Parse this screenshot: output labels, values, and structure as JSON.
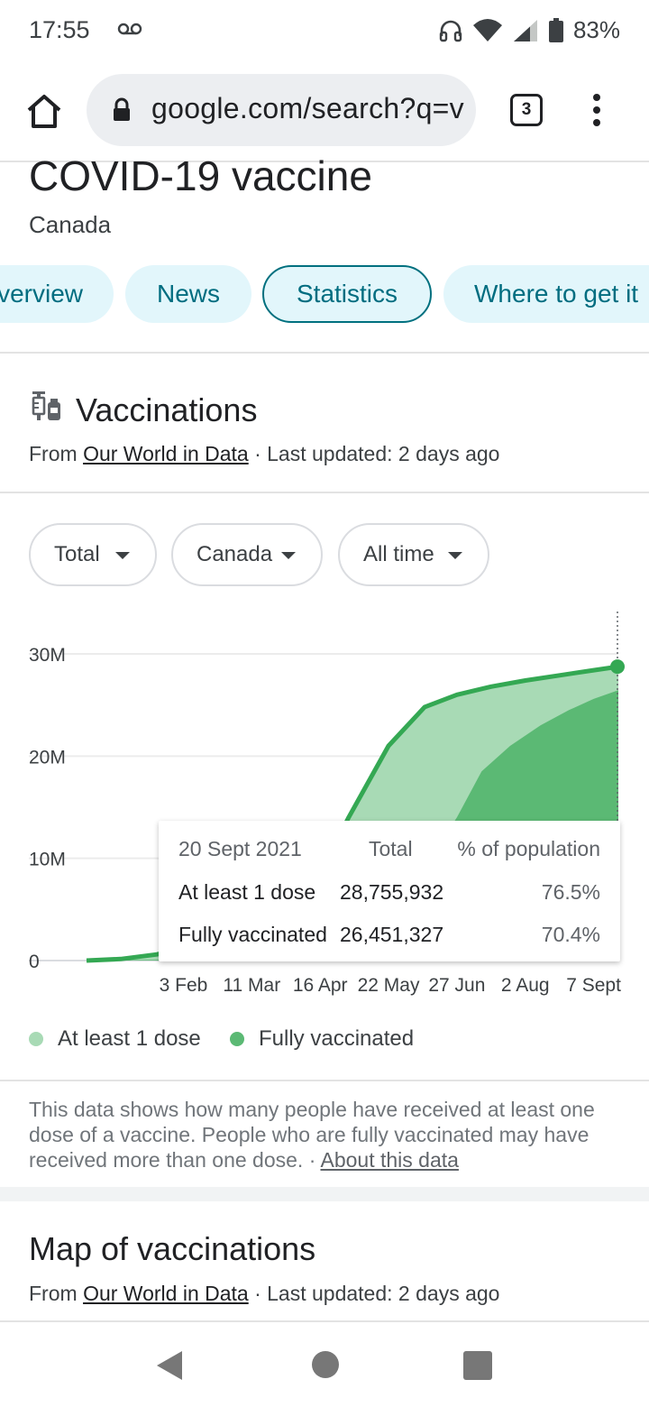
{
  "status_bar": {
    "time": "17:55",
    "battery_percent": "83%",
    "icons": [
      "voicemail-icon",
      "headphones-icon",
      "wifi-icon",
      "signal-icon",
      "battery-icon"
    ]
  },
  "browser": {
    "url": "google.com/search?q=v",
    "tab_count": "3"
  },
  "page": {
    "title": "COVID-19 vaccine",
    "subtitle": "Canada",
    "chips": [
      {
        "label": "Overview",
        "visible": "verview"
      },
      {
        "label": "News",
        "visible": "News"
      },
      {
        "label": "Statistics",
        "visible": "Statistics",
        "selected": true
      },
      {
        "label": "Where to get it",
        "visible": "Where to get it"
      }
    ]
  },
  "vaccinations": {
    "title": "Vaccinations",
    "source_prefix": "From ",
    "source_link": "Our World in Data",
    "source_suffix": " · Last updated: 2 days ago",
    "filters": [
      "Total",
      "Canada",
      "All time"
    ]
  },
  "chart_data": {
    "type": "area",
    "y_ticks": [
      "30M",
      "20M",
      "10M",
      "0"
    ],
    "x_ticks": [
      "3 Feb",
      "11 Mar",
      "16 Apr",
      "22 May",
      "27 Jun",
      "2 Aug",
      "7 Sept"
    ],
    "ylim": [
      0,
      30000000
    ],
    "colors": {
      "at_least_one": "#a8dab5",
      "fully": "#5bb974",
      "line": "#34a853"
    },
    "series": [
      {
        "name": "At least 1 dose",
        "points": [
          [
            "2020-12-14",
            0
          ],
          [
            "2021-01-01",
            150000
          ],
          [
            "2021-01-20",
            600000
          ],
          [
            "2021-02-03",
            1200000
          ],
          [
            "2021-03-11",
            3000000
          ],
          [
            "2021-04-16",
            8500000
          ],
          [
            "2021-05-01",
            14000000
          ],
          [
            "2021-05-22",
            21000000
          ],
          [
            "2021-06-10",
            24800000
          ],
          [
            "2021-06-27",
            26000000
          ],
          [
            "2021-07-15",
            26800000
          ],
          [
            "2021-08-02",
            27400000
          ],
          [
            "2021-08-20",
            27900000
          ],
          [
            "2021-09-07",
            28400000
          ],
          [
            "2021-09-20",
            28755932
          ]
        ]
      },
      {
        "name": "Fully vaccinated",
        "points": [
          [
            "2020-12-14",
            0
          ],
          [
            "2021-02-03",
            100000
          ],
          [
            "2021-04-16",
            900000
          ],
          [
            "2021-06-01",
            4000000
          ],
          [
            "2021-06-10",
            7500000
          ],
          [
            "2021-06-20",
            12000000
          ],
          [
            "2021-06-27",
            14000000
          ],
          [
            "2021-07-10",
            18500000
          ],
          [
            "2021-07-25",
            21000000
          ],
          [
            "2021-08-10",
            23000000
          ],
          [
            "2021-08-25",
            24500000
          ],
          [
            "2021-09-07",
            25600000
          ],
          [
            "2021-09-20",
            26451327
          ]
        ]
      }
    ]
  },
  "tooltip": {
    "date": "20 Sept 2021",
    "col_total": "Total",
    "col_pct": "% of population",
    "rows": [
      {
        "label": "At least 1 dose",
        "total": "28,755,932",
        "pct": "76.5%"
      },
      {
        "label": "Fully vaccinated",
        "total": "26,451,327",
        "pct": "70.4%"
      }
    ]
  },
  "legend": [
    "At least 1 dose",
    "Fully vaccinated"
  ],
  "note": {
    "text": "This data shows how many people have received at least one dose of a vaccine. People who are fully vaccinated may have received more than one dose.",
    "sep": " · ",
    "link": "About this data"
  },
  "map": {
    "title": "Map of vaccinations",
    "source_prefix": "From ",
    "source_link": "Our World in Data",
    "source_suffix": " · Last updated: 2 days ago"
  }
}
